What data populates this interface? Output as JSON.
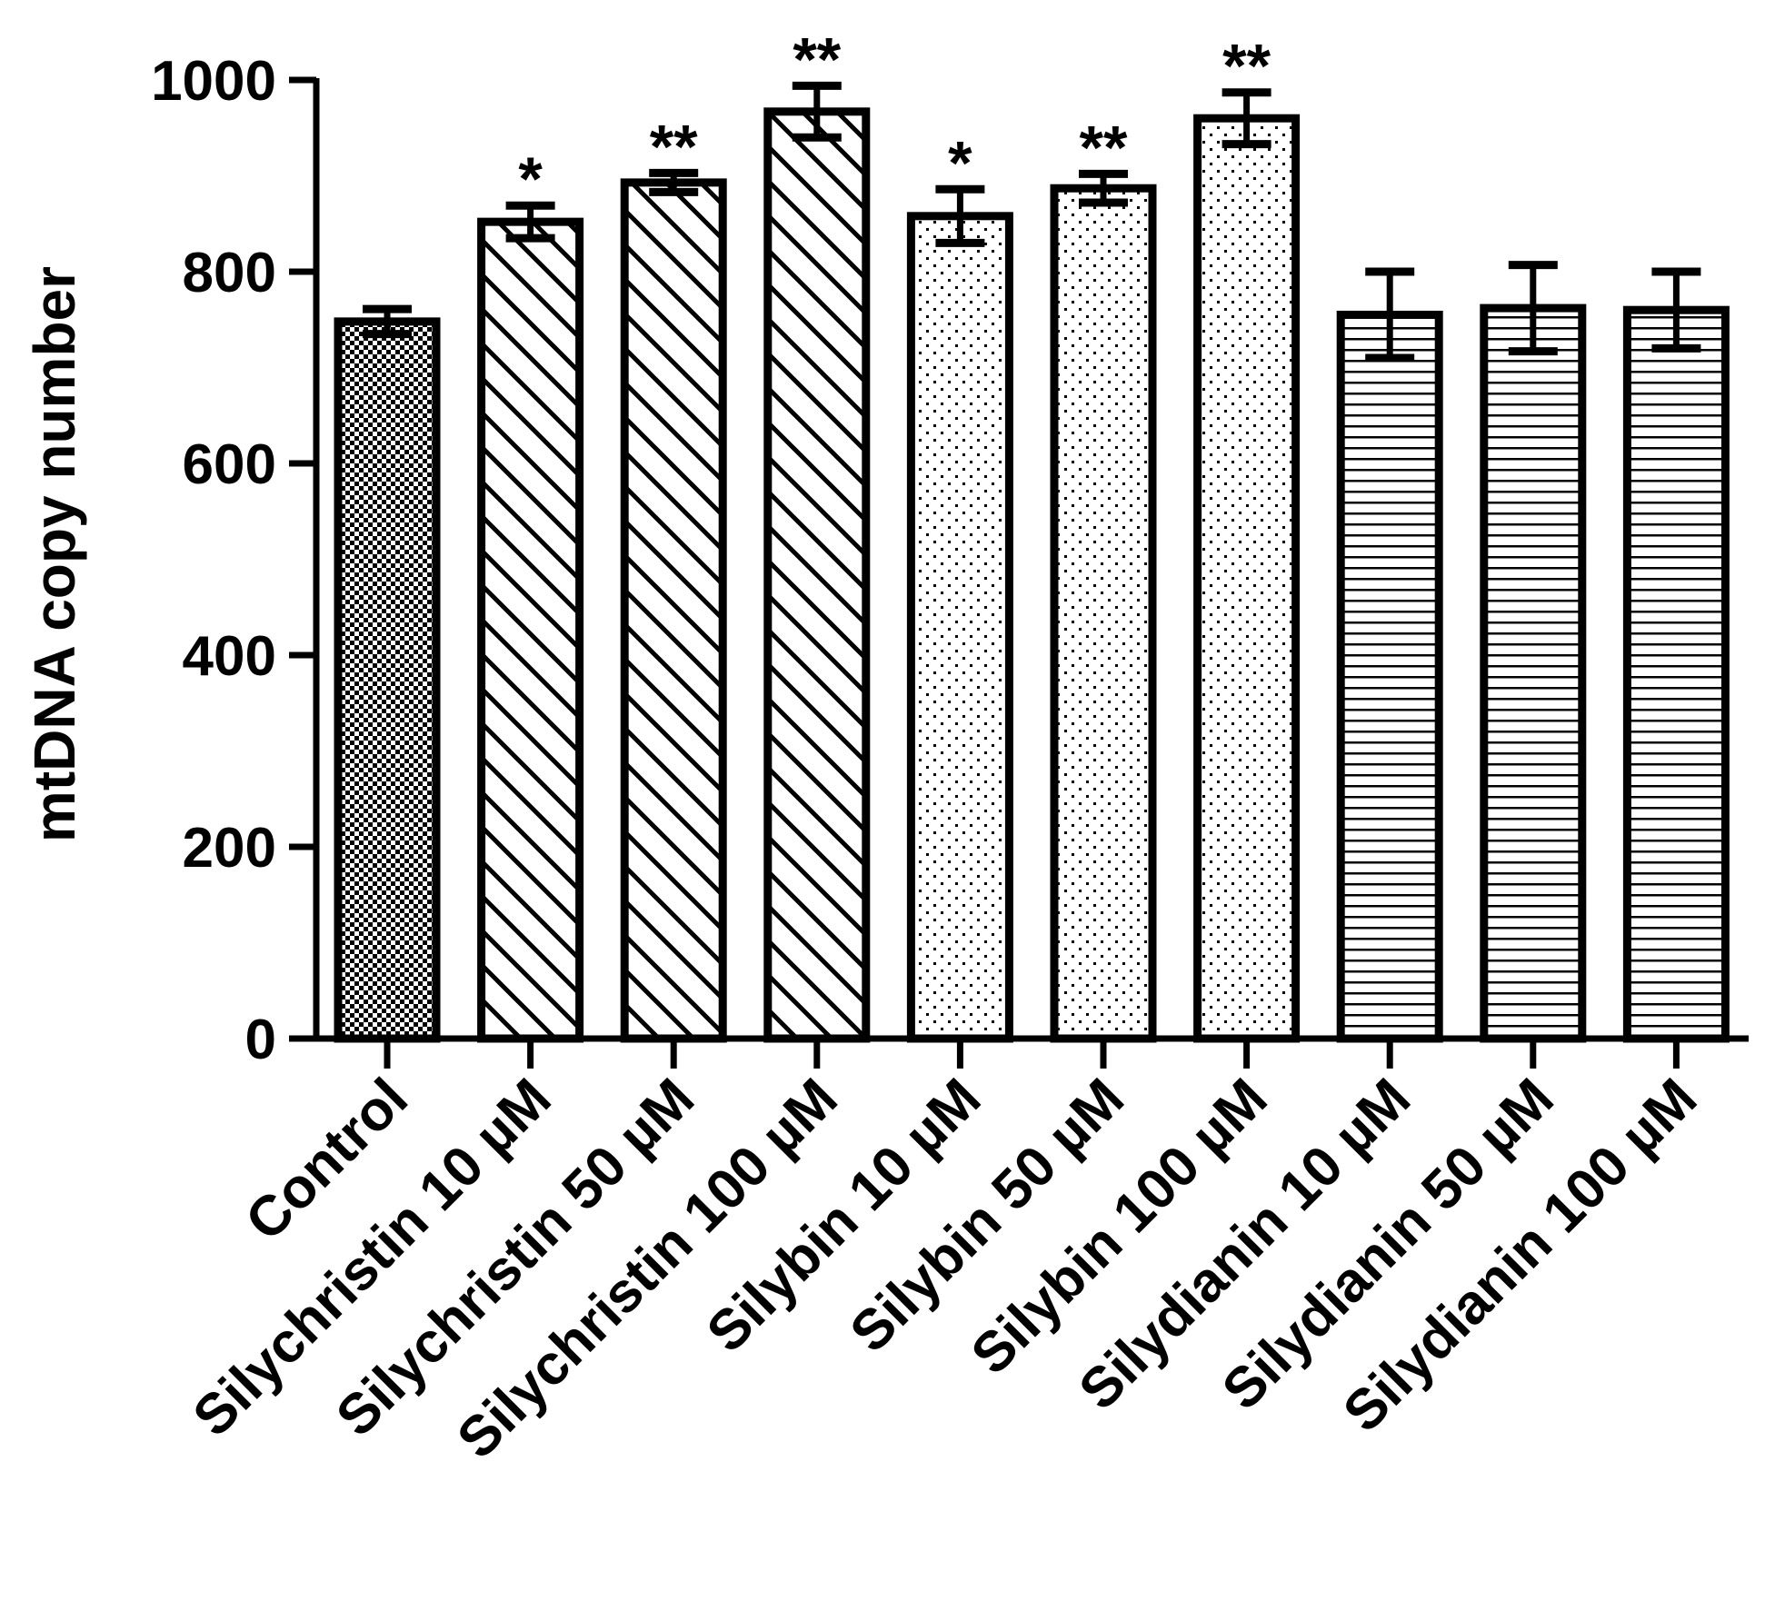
{
  "chart_data": {
    "type": "bar",
    "title": "",
    "xlabel": "",
    "ylabel": "mtDNA copy number",
    "ylim": [
      0,
      1000
    ],
    "yticks": [
      0,
      200,
      400,
      600,
      800,
      1000
    ],
    "grid": false,
    "categories": [
      "Control",
      "Silychristin 10 µM",
      "Silychristin 50 µM",
      "Silychristin 100 µM",
      "Silybin 10 µM",
      "Silybin 50 µM",
      "Silybin 100 µM",
      "Silydianin 10 µM",
      "Silydianin 50 µM",
      "Silydianin 100 µM"
    ],
    "values": [
      748,
      852,
      893,
      967,
      858,
      887,
      960,
      755,
      762,
      760
    ],
    "errors": [
      13,
      17,
      10,
      27,
      28,
      15,
      27,
      45,
      45,
      40
    ],
    "patterns": [
      "checker",
      "diagonal",
      "diagonal",
      "diagonal",
      "dots",
      "dots",
      "dots",
      "horizontal",
      "horizontal",
      "horizontal"
    ],
    "significance": [
      "",
      "*",
      "**",
      "**",
      "*",
      "**",
      "**",
      "",
      "",
      ""
    ]
  }
}
